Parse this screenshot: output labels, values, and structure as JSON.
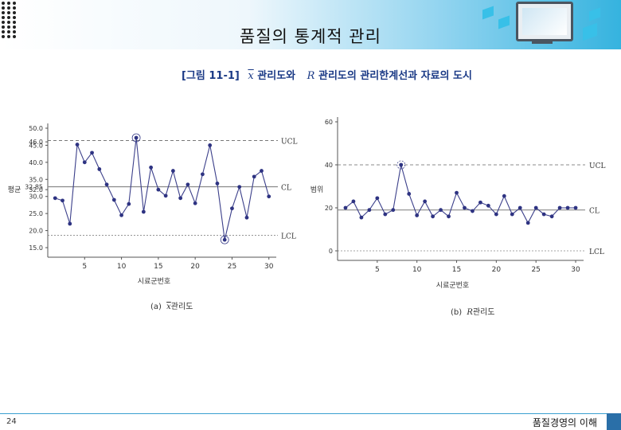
{
  "slide": {
    "title": "품질의 통계적 관리",
    "figure_caption": {
      "label": "[그림 11-1]",
      "x_symbol": "x",
      "part1": "관리도와",
      "r_symbol": "R",
      "part2": "관리도의 관리한계선과 자료의 도시"
    },
    "page_number": "24",
    "footer_title": "품질경영의 이해"
  },
  "chart_data": [
    {
      "type": "line",
      "xlabel": "시료군번호",
      "ylabel": "평균",
      "caption_prefix": "(a)",
      "caption_symbol": "x",
      "caption_suffix": "관리도",
      "ylim": [
        15,
        50
      ],
      "xlim": [
        0,
        31
      ],
      "y_ticks": [
        "50.0",
        "46.0",
        "45.0",
        "40.0",
        "35.0",
        "32.0",
        "30.0",
        "25.0",
        "20.0",
        "15.0"
      ],
      "y_tick_values": [
        50,
        46,
        45,
        40,
        35,
        32,
        30,
        25,
        20,
        15
      ],
      "x_ticks": [
        5,
        10,
        15,
        20,
        25,
        30
      ],
      "cl_value_label": "32.85",
      "lines": {
        "UCL": {
          "label": "UCL",
          "value": 46.4
        },
        "CL": {
          "label": "CL",
          "value": 32.85
        },
        "LCL": {
          "label": "LCL",
          "value": 18.6
        }
      },
      "x": [
        1,
        2,
        3,
        4,
        5,
        6,
        7,
        8,
        9,
        10,
        11,
        12,
        13,
        14,
        15,
        16,
        17,
        18,
        19,
        20,
        21,
        22,
        23,
        24,
        25,
        26,
        27,
        28,
        29,
        30
      ],
      "values": [
        29.5,
        28.8,
        22.0,
        45.2,
        40.0,
        42.8,
        38.0,
        33.5,
        29.0,
        24.5,
        27.8,
        47.2,
        25.5,
        38.5,
        32.0,
        30.2,
        37.5,
        29.5,
        33.5,
        28.0,
        36.5,
        45.0,
        33.8,
        17.3,
        26.5,
        32.8,
        23.8,
        35.8,
        37.5,
        30.0
      ],
      "highlighted": [
        12,
        24
      ]
    },
    {
      "type": "line",
      "xlabel": "시료군번호",
      "ylabel": "범위",
      "caption_prefix": "(b)",
      "caption_symbol": "R",
      "caption_suffix": "관리도",
      "ylim": [
        0,
        60
      ],
      "xlim": [
        0,
        31
      ],
      "y_ticks": [
        "60",
        "40",
        "20",
        "0"
      ],
      "y_tick_values": [
        60,
        40,
        20,
        0
      ],
      "x_ticks": [
        5,
        10,
        15,
        20,
        25,
        30
      ],
      "lines": {
        "UCL": {
          "label": "UCL",
          "value": 40.0
        },
        "CL": {
          "label": "CL",
          "value": 19.0
        },
        "LCL": {
          "label": "LCL",
          "value": 0
        }
      },
      "x": [
        1,
        2,
        3,
        4,
        5,
        6,
        7,
        8,
        9,
        10,
        11,
        12,
        13,
        14,
        15,
        16,
        17,
        18,
        19,
        20,
        21,
        22,
        23,
        24,
        25,
        26,
        27,
        28,
        29,
        30
      ],
      "values": [
        20.0,
        23.0,
        15.5,
        19.0,
        24.5,
        17.0,
        19.0,
        40.0,
        26.5,
        16.5,
        23.0,
        16.0,
        19.0,
        16.0,
        27.0,
        20.0,
        18.5,
        22.5,
        21.0,
        17.0,
        25.5,
        17.0,
        20.0,
        13.0,
        20.0,
        17.0,
        16.0,
        20.0,
        20.0,
        20.0
      ],
      "highlighted": [
        8
      ]
    }
  ]
}
